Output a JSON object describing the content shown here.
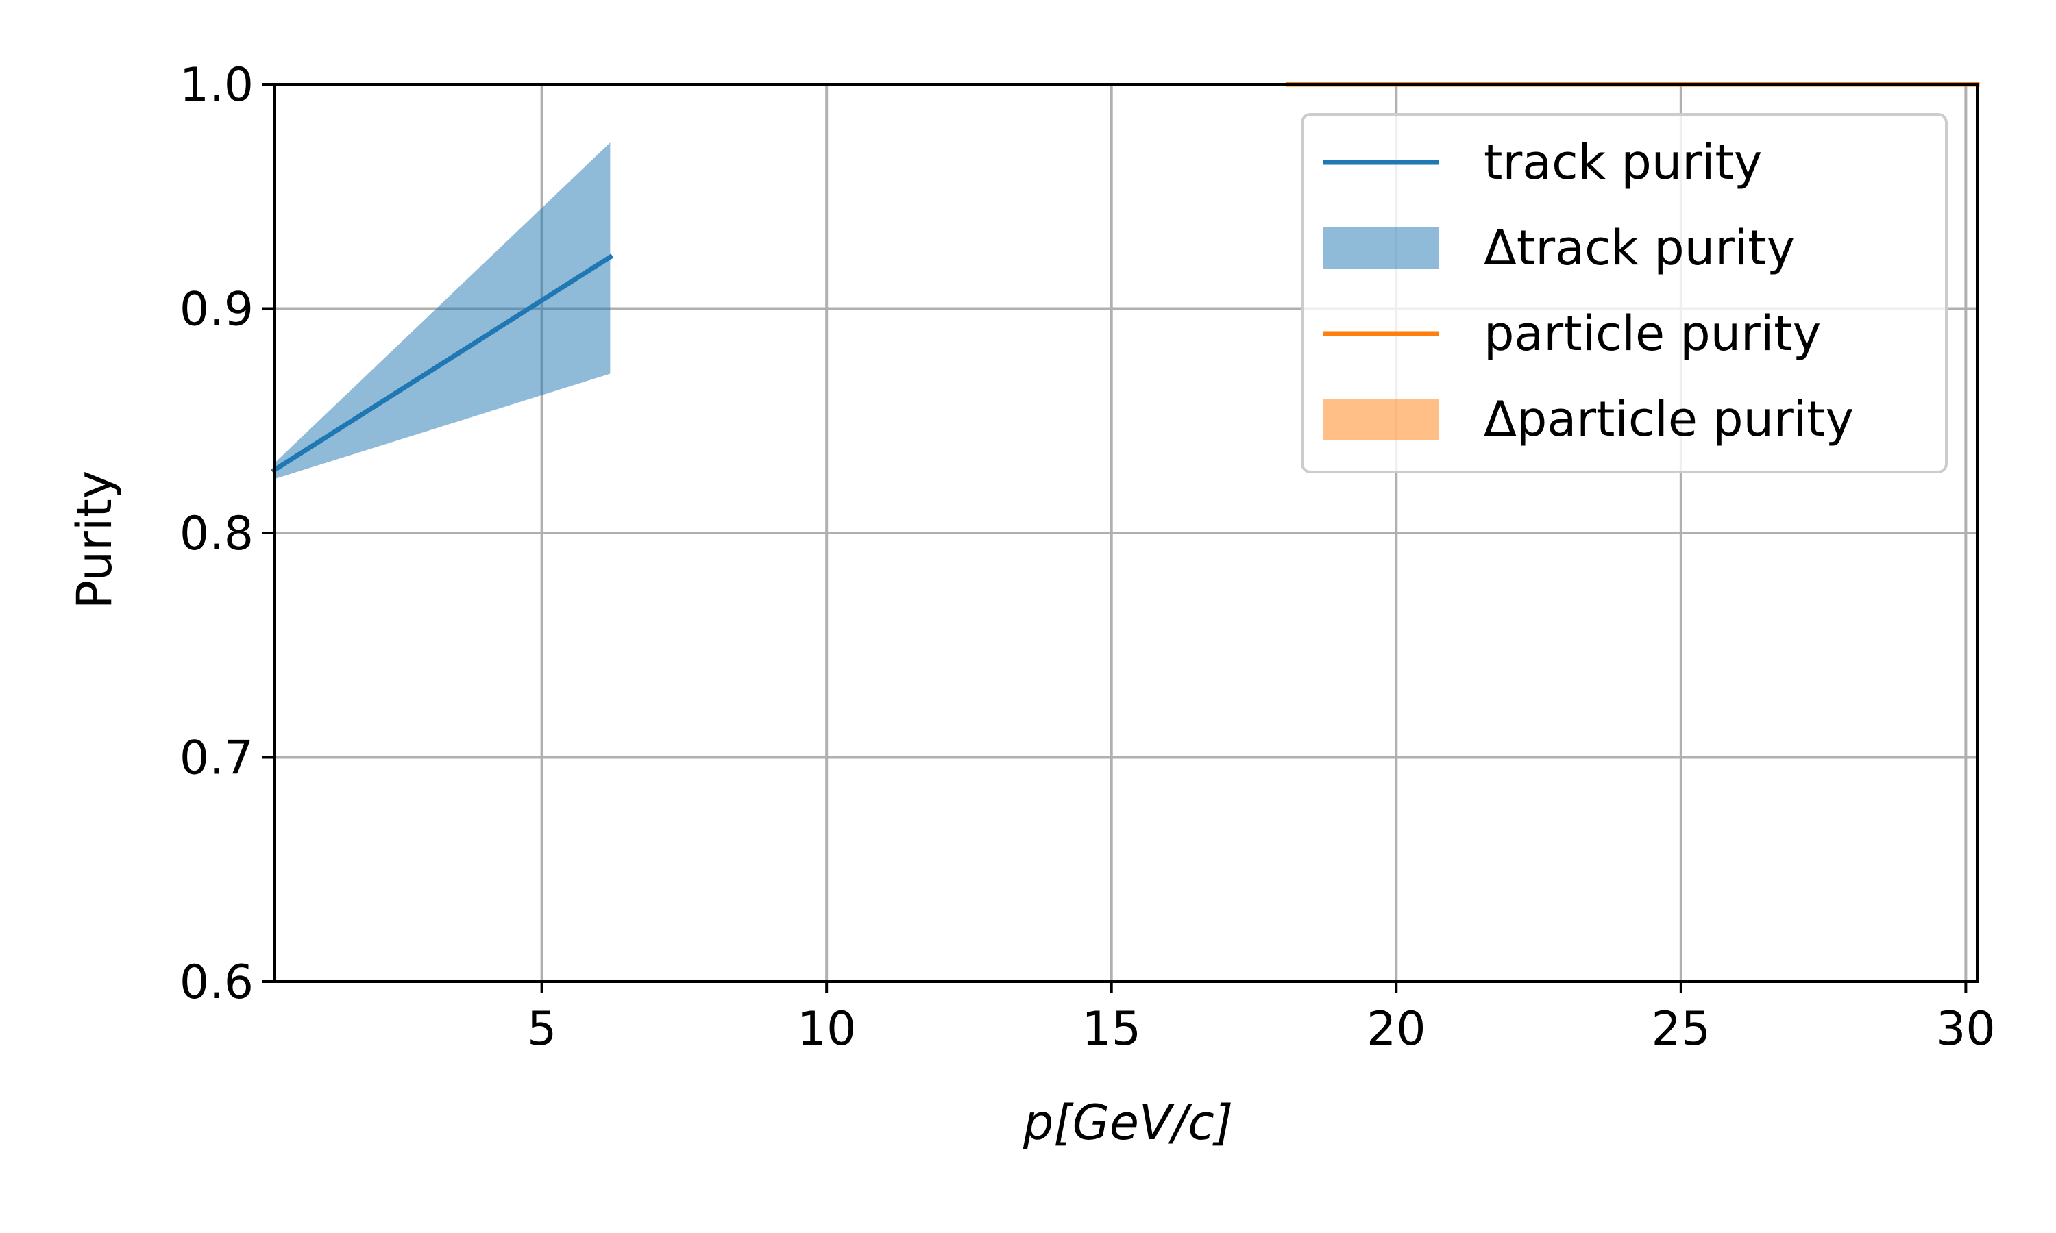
{
  "chart_data": {
    "type": "line",
    "title": "",
    "xlabel": "p[GeV/c]",
    "ylabel": "Purity",
    "xlim": [
      0.3,
      30.2
    ],
    "ylim": [
      0.6,
      1.0
    ],
    "xticks": [
      5,
      10,
      15,
      20,
      25,
      30
    ],
    "yticks": [
      0.6,
      0.7,
      0.8,
      0.9,
      1.0
    ],
    "xtick_labels": [
      "5",
      "10",
      "15",
      "20",
      "25",
      "30"
    ],
    "ytick_labels": [
      "0.6",
      "0.7",
      "0.8",
      "0.9",
      "1.0"
    ],
    "grid": true,
    "legend_position": "upper right",
    "series": [
      {
        "name": "track purity",
        "kind": "line",
        "color": "#1f77b4",
        "x": [
          0.3,
          6.2
        ],
        "y": [
          0.828,
          0.923
        ],
        "band_label": "Δtrack purity",
        "band_color": "#1f77b4",
        "band_alpha": 0.5,
        "band_upper": [
          0.831,
          0.974
        ],
        "band_lower": [
          0.824,
          0.871
        ]
      },
      {
        "name": "particle purity",
        "kind": "line",
        "color": "#ff7f0e",
        "x": [
          18.1,
          30.2
        ],
        "y": [
          1.0,
          1.0
        ],
        "band_label": "Δparticle purity",
        "band_color": "#ff7f0e",
        "band_alpha": 0.5,
        "band_upper": [
          1.0,
          1.0
        ],
        "band_lower": [
          1.0,
          1.0
        ]
      }
    ]
  }
}
